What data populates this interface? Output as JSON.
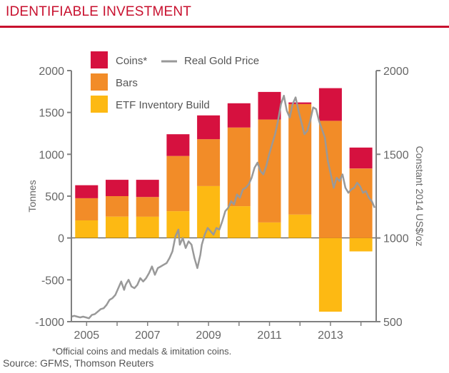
{
  "title": "IDENTIFIABLE INVESTMENT",
  "footnote": "*Official coins and medals & imitation coins.",
  "source": "Source: GFMS, Thomson Reuters",
  "colors": {
    "brand": "#c8102e",
    "coins": "#d6113f",
    "bars": "#f28c28",
    "etf": "#fdb913",
    "gold_line": "#999999",
    "axis": "#808080"
  },
  "chart_data": {
    "type": "bar",
    "stacked": true,
    "title": "",
    "xlabel": "",
    "ylabel": "Tonnes",
    "y2label": "Constant 2014 US$/oz",
    "ylim": [
      -1000,
      2000
    ],
    "yticks": [
      2000,
      1500,
      1000,
      500,
      0,
      -500,
      -1000
    ],
    "y2lim": [
      500,
      2000
    ],
    "y2ticks": [
      2000,
      1500,
      1000,
      500
    ],
    "xtick_labels": [
      "2005",
      "2007",
      "2009",
      "2011",
      "2013"
    ],
    "categories": [
      "2005",
      "2006",
      "2007",
      "2008",
      "2009",
      "2010",
      "2011",
      "2012",
      "2013",
      "2014"
    ],
    "legend_position": "top-left",
    "series": [
      {
        "name": "ETF Inventory Build",
        "kind": "bar",
        "color": "#fdb913",
        "values": [
          210,
          255,
          255,
          320,
          620,
          380,
          185,
          280,
          -880,
          -160
        ]
      },
      {
        "name": "Bars",
        "kind": "bar",
        "color": "#f28c28",
        "values": [
          265,
          245,
          235,
          660,
          560,
          940,
          1230,
          1320,
          1400,
          830
        ]
      },
      {
        "name": "Coins*",
        "kind": "bar",
        "color": "#d6113f",
        "values": [
          155,
          195,
          205,
          260,
          285,
          290,
          330,
          20,
          390,
          250
        ]
      },
      {
        "name": "Real Gold Price",
        "kind": "line",
        "axis": "right",
        "color": "#999999",
        "x": [
          2004.5,
          2004.6,
          2004.7,
          2004.8,
          2004.9,
          2005.0,
          2005.1,
          2005.2,
          2005.3,
          2005.4,
          2005.5,
          2005.6,
          2005.7,
          2005.8,
          2005.9,
          2006.0,
          2006.1,
          2006.2,
          2006.3,
          2006.35,
          2006.45,
          2006.55,
          2006.65,
          2006.75,
          2006.85,
          2006.95,
          2007.05,
          2007.15,
          2007.25,
          2007.35,
          2007.45,
          2007.55,
          2007.65,
          2007.75,
          2007.85,
          2007.95,
          2008.05,
          2008.15,
          2008.2,
          2008.3,
          2008.4,
          2008.5,
          2008.6,
          2008.7,
          2008.8,
          2008.9,
          2008.95,
          2009.05,
          2009.15,
          2009.25,
          2009.35,
          2009.45,
          2009.55,
          2009.65,
          2009.75,
          2009.85,
          2009.95,
          2010.05,
          2010.15,
          2010.25,
          2010.35,
          2010.45,
          2010.55,
          2010.65,
          2010.75,
          2010.85,
          2010.95,
          2011.05,
          2011.15,
          2011.25,
          2011.35,
          2011.45,
          2011.55,
          2011.65,
          2011.75,
          2011.85,
          2011.95,
          2012.05,
          2012.15,
          2012.25,
          2012.35,
          2012.45,
          2012.55,
          2012.65,
          2012.75,
          2012.85,
          2012.95,
          2013.05,
          2013.15,
          2013.25,
          2013.35,
          2013.45,
          2013.55,
          2013.65,
          2013.75,
          2013.85,
          2013.95,
          2014.05,
          2014.15,
          2014.25,
          2014.35,
          2014.45,
          2014.55,
          2014.65,
          2014.75,
          2014.85
        ],
        "values": [
          530,
          535,
          530,
          525,
          530,
          525,
          520,
          540,
          545,
          560,
          575,
          580,
          600,
          630,
          640,
          660,
          700,
          740,
          690,
          720,
          750,
          710,
          700,
          720,
          760,
          740,
          760,
          790,
          830,
          780,
          820,
          830,
          840,
          850,
          880,
          920,
          1010,
          1050,
          960,
          1000,
          940,
          980,
          960,
          880,
          820,
          900,
          960,
          1020,
          1060,
          1040,
          1020,
          1060,
          1050,
          1100,
          1160,
          1180,
          1220,
          1200,
          1260,
          1240,
          1290,
          1300,
          1320,
          1360,
          1420,
          1450,
          1400,
          1380,
          1430,
          1500,
          1560,
          1620,
          1700,
          1800,
          1850,
          1760,
          1720,
          1800,
          1840,
          1760,
          1690,
          1620,
          1640,
          1700,
          1780,
          1770,
          1700,
          1650,
          1600,
          1460,
          1380,
          1300,
          1360,
          1340,
          1380,
          1300,
          1270,
          1290,
          1300,
          1330,
          1310,
          1270,
          1280,
          1240,
          1220,
          1180
        ]
      }
    ]
  },
  "legend": {
    "coins": "Coins*",
    "gold": "Real Gold Price",
    "bars": "Bars",
    "etf": "ETF Inventory Build"
  }
}
